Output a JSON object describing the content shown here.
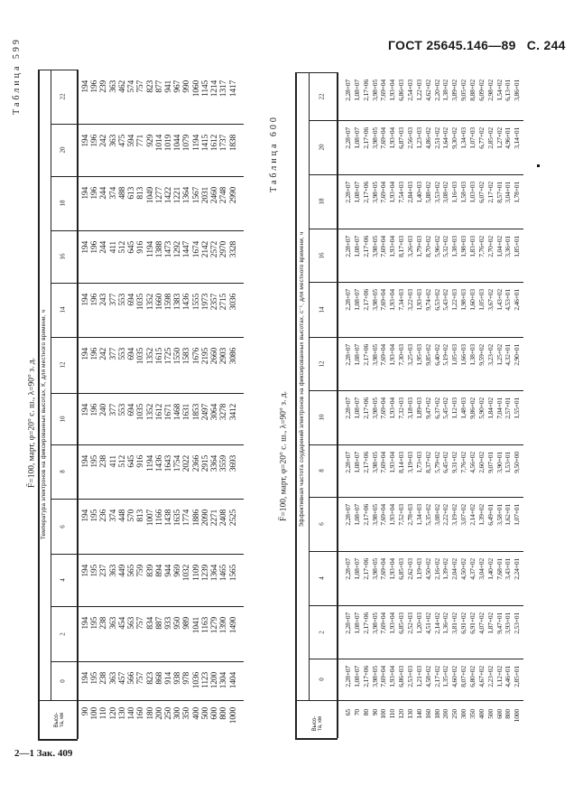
{
  "header": {
    "gost": "ГОСТ 25645.146—89",
    "page": "С. 244"
  },
  "footer": "2—1 Зак. 409",
  "tables": [
    {
      "label": "Таблица 599",
      "caption": "F̄=100, март, φ=20° с. ш., λ=90° з. д.",
      "subtitle": "Температура электронов на фиксированных высотах, К, для местного времени, ч",
      "height_label": "Высо-\nта, км",
      "hours": [
        "0",
        "2",
        "4",
        "6",
        "8",
        "10",
        "12",
        "14",
        "16",
        "18",
        "20",
        "22"
      ],
      "heights": [
        "90",
        "100",
        "110",
        "120",
        "130",
        "140",
        "160",
        "180",
        "200",
        "250",
        "300",
        "350",
        "400",
        "500",
        "600",
        "800",
        "1000"
      ],
      "values": [
        [
          "194",
          "195",
          "238",
          "363",
          "457",
          "566",
          "757",
          "823",
          "868",
          "914",
          "938",
          "978",
          "1036",
          "1123",
          "1200",
          "1304",
          "1404"
        ],
        [
          "194",
          "195",
          "238",
          "363",
          "454",
          "563",
          "757",
          "834",
          "887",
          "933",
          "950",
          "989",
          "1041",
          "1163",
          "1279",
          "1390",
          "1490"
        ],
        [
          "194",
          "195",
          "237",
          "363",
          "449",
          "565",
          "759",
          "839",
          "894",
          "944",
          "969",
          "1032",
          "1109",
          "1239",
          "1364",
          "1465",
          "1565"
        ],
        [
          "194",
          "195",
          "236",
          "374",
          "448",
          "570",
          "813",
          "1007",
          "1166",
          "1438",
          "1635",
          "1774",
          "1886",
          "2090",
          "2271",
          "2408",
          "2525"
        ],
        [
          "194",
          "195",
          "238",
          "411",
          "512",
          "645",
          "916",
          "1194",
          "1436",
          "1643",
          "1754",
          "2022",
          "2366",
          "2915",
          "3364",
          "3559",
          "3693"
        ],
        [
          "194",
          "196",
          "240",
          "377",
          "553",
          "694",
          "1035",
          "1352",
          "1612",
          "1671",
          "1468",
          "1631",
          "1853",
          "2497",
          "3064",
          "3278",
          "3412"
        ],
        [
          "194",
          "196",
          "242",
          "377",
          "553",
          "694",
          "1035",
          "1352",
          "1615",
          "1725",
          "1550",
          "1583",
          "1676",
          "2195",
          "2660",
          "2903",
          "3086"
        ],
        [
          "194",
          "196",
          "243",
          "377",
          "553",
          "694",
          "1035",
          "1352",
          "1660",
          "1598",
          "1383",
          "1436",
          "1555",
          "1973",
          "2357",
          "2715",
          "3036"
        ],
        [
          "194",
          "196",
          "244",
          "411",
          "512",
          "645",
          "916",
          "1194",
          "1388",
          "1473",
          "1292",
          "1447",
          "1674",
          "2142",
          "2572",
          "2970",
          "3328"
        ],
        [
          "194",
          "196",
          "244",
          "374",
          "488",
          "613",
          "813",
          "1049",
          "1277",
          "1422",
          "1221",
          "1364",
          "1567",
          "2031",
          "2460",
          "2748",
          "2990"
        ],
        [
          "194",
          "196",
          "242",
          "363",
          "475",
          "594",
          "771",
          "929",
          "1014",
          "1019",
          "1044",
          "1079",
          "1194",
          "1415",
          "1612",
          "1737",
          "1838"
        ],
        [
          "194",
          "196",
          "239",
          "363",
          "462",
          "574",
          "757",
          "823",
          "877",
          "941",
          "967",
          "990",
          "1060",
          "1145",
          "1214",
          "1317",
          "1417"
        ]
      ]
    },
    {
      "label": "Таблица 600",
      "caption": "F̄=100, март, φ=20° с. ш., λ=90° з. д.",
      "subtitle": "Эффективная частота соударений электронов на фиксированных высотах, с⁻¹, для местного времени, ч",
      "height_label": "Высо-\nта, км",
      "hours": [
        "0",
        "2",
        "4",
        "6",
        "8",
        "10",
        "12",
        "14",
        "16",
        "18",
        "20",
        "22"
      ],
      "heights": [
        "65",
        "70",
        "80",
        "90",
        "100",
        "110",
        "120",
        "130",
        "140",
        "160",
        "180",
        "200",
        "250",
        "300",
        "350",
        "400",
        "500",
        "600",
        "800",
        "1000"
      ],
      "values": [
        [
          "2,28+07",
          "1,08+07",
          "2,17+06",
          "3,98+05",
          "7,69+04",
          "1,93+04",
          "6,86+03",
          "2,53+03",
          "1,21+03",
          "4,58+02",
          "2,17+02",
          "1,35+02",
          "4,60+02",
          "8,07+02",
          "6,80+02",
          "4,67+02",
          "2,23+02",
          "1,12+02",
          "4,46+01",
          "2,85+01"
        ],
        [
          "2,28+07",
          "1,08+07",
          "2,17+06",
          "3,98+05",
          "7,69+04",
          "1,93+04",
          "6,85+03",
          "2,52+03",
          "1,20+03",
          "4,51+02",
          "2,14+02",
          "1,36+02",
          "3,81+02",
          "6,91+02",
          "6,91+02",
          "4,07+02",
          "1,87+02",
          "9,47+01",
          "3,93+01",
          "2,53+01"
        ],
        [
          "2,28+07",
          "1,08+07",
          "2,17+06",
          "3,98+05",
          "7,69+04",
          "1,93+04",
          "6,85+03",
          "2,62+03",
          "1,19+03",
          "4,50+02",
          "2,16+02",
          "1,39+02",
          "2,04+02",
          "4,50+02",
          "4,37+02",
          "3,04+02",
          "1,40+02",
          "7,68+01",
          "3,43+01",
          "2,24+01"
        ],
        [
          "2,28+07",
          "1,08+07",
          "2,17+06",
          "3,98+05",
          "7,69+04",
          "1,93+04",
          "7,52+03",
          "2,78+03",
          "1,34+03",
          "5,35+02",
          "3,08+02",
          "2,22+02",
          "3,19+02",
          "3,07+02",
          "2,14+02",
          "1,39+02",
          "6,49+01",
          "3,58+01",
          "1,62+01",
          "1,07+01"
        ],
        [
          "2,28+07",
          "1,08+07",
          "2,17+06",
          "3,98+05",
          "7,69+04",
          "1,93+04",
          "8,14+03",
          "3,19+03",
          "1,73+03",
          "8,37+02",
          "5,79+02",
          "6,45+02",
          "9,31+02",
          "7,76+02",
          "4,56+02",
          "2,60+02",
          "9,07+01",
          "3,90+01",
          "1,53+01",
          "9,50+00"
        ],
        [
          "2,28+07",
          "1,08+07",
          "2,17+06",
          "3,98+05",
          "7,69+04",
          "1,93+04",
          "7,32+03",
          "3,18+03",
          "1,89+03",
          "9,47+02",
          "6,37+02",
          "5,45+02",
          "1,12+03",
          "1,48+03",
          "9,86+02",
          "5,90+02",
          "1,84+02",
          "7,04+01",
          "2,57+01",
          "1,55+01"
        ],
        [
          "2,28+07",
          "1,08+07",
          "2,17+06",
          "3,98+05",
          "7,69+04",
          "1,93+04",
          "7,30+03",
          "3,25+03",
          "1,95+03",
          "9,85+02",
          "6,40+02",
          "5,19+02",
          "1,05+03",
          "1,66+03",
          "1,38+03",
          "9,59+02",
          "3,23+02",
          "1,25+02",
          "4,32+01",
          "2,90+01"
        ],
        [
          "2,28+07",
          "1,08+07",
          "2,17+06",
          "3,98+05",
          "7,69+04",
          "1,93+04",
          "7,34+03",
          "3,22+03",
          "1,93+03",
          "9,74+02",
          "6,53+02",
          "5,43+02",
          "1,22+03",
          "1,98+03",
          "1,60+03",
          "1,05+03",
          "3,67+02",
          "1,43+02",
          "4,53+01",
          "2,46+01"
        ],
        [
          "2,28+07",
          "1,08+07",
          "2,17+06",
          "3,98+05",
          "7,69+04",
          "1,93+04",
          "8,17+03",
          "3,26+03",
          "1,79+03",
          "8,70+02",
          "5,96+02",
          "5,32+02",
          "1,38+03",
          "1,98+03",
          "1,83+03",
          "7,76+02",
          "2,70+02",
          "1,04+02",
          "3,36+01",
          "1,85+01"
        ],
        [
          "2,28+07",
          "1,08+07",
          "2,17+06",
          "3,98+05",
          "7,69+04",
          "1,93+04",
          "7,54+03",
          "2,84+03",
          "1,40+03",
          "5,88+02",
          "3,53+02",
          "3,08+02",
          "1,16+03",
          "1,58+03",
          "1,03+03",
          "6,07+02",
          "2,17+02",
          "8,57+01",
          "3,04+01",
          "1,78+01"
        ],
        [
          "2,28+07",
          "1,08+07",
          "2,17+06",
          "3,98+05",
          "7,69+04",
          "1,93+04",
          "6,87+03",
          "2,56+03",
          "1,23+03",
          "4,86+02",
          "2,51+02",
          "1,64+02",
          "9,30+02",
          "1,34+03",
          "1,07+03",
          "6,77+02",
          "2,85+02",
          "1,27+02",
          "4,96+01",
          "3,14+01"
        ],
        [
          "2,28+07",
          "1,08+07",
          "2,17+06",
          "3,98+05",
          "7,69+04",
          "1,93+04",
          "6,86+03",
          "2,54+03",
          "1,22+03",
          "4,62+02",
          "2,20+02",
          "1,38+02",
          "3,89+02",
          "9,05+02",
          "8,88+02",
          "6,09+02",
          "2,98+02",
          "1,54+02",
          "6,13+01",
          "3,86+01"
        ]
      ]
    }
  ]
}
